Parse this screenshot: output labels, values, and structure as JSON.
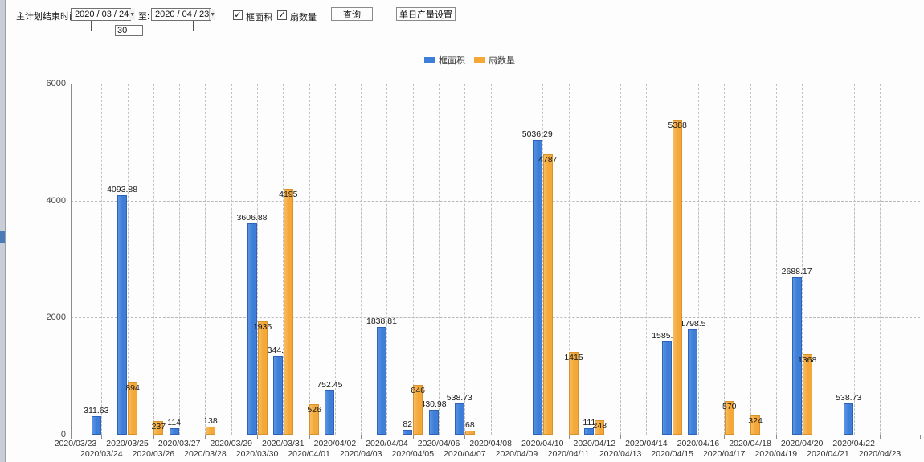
{
  "toolbar": {
    "label_plan_end": "主计划结束时间:",
    "date_from": "2020 / 03 / 24",
    "label_to": "至:",
    "date_to": "2020 / 04 / 23",
    "days_value": "30",
    "checkbox_frame_area": "框面积",
    "checkbox_fan_count": "扇数量",
    "query_button": "查询",
    "daily_output_button": "单日产量设置",
    "dropdown_arrow": "▼",
    "check_mark": "✓"
  },
  "legend": {
    "series1": "框面积",
    "series2": "扇数量"
  },
  "colors": {
    "series1_blue": "#3d7ed9",
    "series2_orange": "#f4a838",
    "axis_gray": "#8c8c8c",
    "grid_gray": "#b8b8b8"
  },
  "chart_data": {
    "type": "bar",
    "title": "",
    "xlabel": "",
    "ylabel": "",
    "ylim": [
      0,
      6000
    ],
    "yticks": [
      0,
      2000,
      4000,
      6000
    ],
    "grid": "dashed",
    "legend_position": "top-center",
    "categories": [
      "2020/03/23",
      "2020/03/24",
      "2020/03/25",
      "2020/03/26",
      "2020/03/27",
      "2020/03/28",
      "2020/03/29",
      "2020/03/30",
      "2020/03/31",
      "2020/04/01",
      "2020/04/02",
      "2020/04/03",
      "2020/04/04",
      "2020/04/05",
      "2020/04/06",
      "2020/04/07",
      "2020/04/08",
      "2020/04/09",
      "2020/04/10",
      "2020/04/11",
      "2020/04/12",
      "2020/04/13",
      "2020/04/14",
      "2020/04/15",
      "2020/04/16",
      "2020/04/17",
      "2020/04/18",
      "2020/04/19",
      "2020/04/20",
      "2020/04/21",
      "2020/04/22",
      "2020/04/23"
    ],
    "series": [
      {
        "name": "框面积",
        "color": "#3d7ed9",
        "values": [
          null,
          311.63,
          4093.88,
          null,
          114,
          null,
          null,
          3606.88,
          1344.95,
          null,
          752.45,
          null,
          1838.81,
          82,
          430.98,
          538.73,
          null,
          null,
          5036.29,
          null,
          111,
          null,
          null,
          1585.96,
          1798.5,
          null,
          null,
          null,
          2688.17,
          null,
          538.73,
          null
        ]
      },
      {
        "name": "扇数量",
        "color": "#f4a838",
        "values": [
          null,
          null,
          894,
          237,
          null,
          138,
          null,
          1935,
          4195,
          526,
          null,
          null,
          null,
          846,
          null,
          68,
          null,
          null,
          4787,
          1415,
          248,
          null,
          null,
          5388,
          null,
          570,
          324,
          null,
          1368,
          null,
          null,
          null
        ]
      }
    ]
  }
}
